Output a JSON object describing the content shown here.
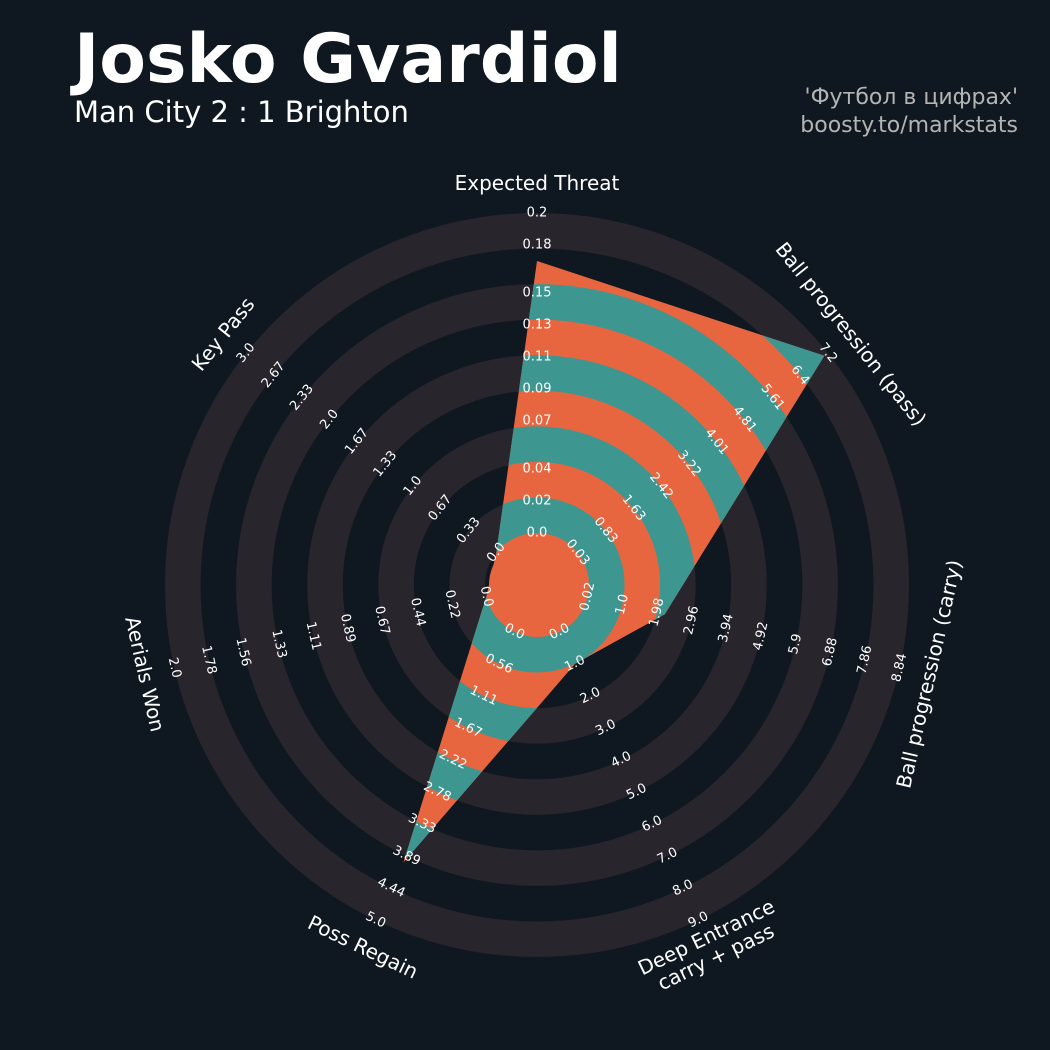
{
  "chart_data": {
    "type": "radar",
    "title": "Josko Gvardiol",
    "subtitle": "Man City 2 : 1 Brighton",
    "credits": [
      "'Футбол в цифрах'",
      "boosty.to/markstats"
    ],
    "categories": [
      "Expected Threat",
      "Ball progression (pass)",
      "Ball progression (carry)",
      "Deep Entrance\ncarry + pass",
      "Poss Regain",
      "Aerials Won",
      "Key Pass"
    ],
    "values": [
      0.17,
      7.1,
      2.2,
      1.0,
      4.0,
      0.0,
      0.0
    ],
    "colors": {
      "background": "#0f1820",
      "ring": "#28252c",
      "fill": "#e8663f",
      "fill_alt": "#3e9690"
    },
    "axes": [
      {
        "ylim": [
          0,
          0.2
        ],
        "yticks": [
          {
            "value": 0,
            "label": "0.0"
          },
          0.02,
          0.04,
          0.07,
          0.09,
          0.11,
          0.13,
          0.15,
          0.18,
          0.2
        ]
      },
      {
        "ylim": [
          0.03,
          7.2
        ],
        "yticks": [
          0.03,
          0.83,
          1.63,
          2.42,
          3.22,
          4.01,
          4.81,
          5.61,
          6.4,
          7.2
        ]
      },
      {
        "ylim": [
          0.02,
          8.84
        ],
        "yticks": [
          0.02,
          {
            "value": 1,
            "label": "1.0"
          },
          1.98,
          2.96,
          3.94,
          4.92,
          5.9,
          6.88,
          7.86,
          8.84
        ]
      },
      {
        "ylim": [
          0,
          9
        ],
        "yticks": [
          {
            "value": 0,
            "label": "0.0"
          },
          {
            "value": 1,
            "label": "1.0"
          },
          {
            "value": 2,
            "label": "2.0"
          },
          {
            "value": 3,
            "label": "3.0"
          },
          {
            "value": 4,
            "label": "4.0"
          },
          {
            "value": 5,
            "label": "5.0"
          },
          {
            "value": 6,
            "label": "6.0"
          },
          {
            "value": 7,
            "label": "7.0"
          },
          {
            "value": 8,
            "label": "8.0"
          },
          {
            "value": 9,
            "label": "9.0"
          }
        ]
      },
      {
        "ylim": [
          0,
          5
        ],
        "yticks": [
          {
            "value": 0,
            "label": "0.0"
          },
          0.56,
          1.11,
          1.67,
          2.22,
          2.78,
          3.33,
          3.89,
          4.44,
          {
            "value": 5,
            "label": "5.0"
          }
        ]
      },
      {
        "ylim": [
          0,
          2
        ],
        "yticks": [
          {
            "value": 0,
            "label": "0.0"
          },
          0.22,
          0.44,
          0.67,
          0.89,
          1.11,
          1.33,
          1.56,
          1.78,
          {
            "value": 2,
            "label": "2.0"
          }
        ]
      },
      {
        "ylim": [
          0,
          3
        ],
        "yticks": [
          {
            "value": 0,
            "label": "0.0"
          },
          0.33,
          0.67,
          {
            "value": 1,
            "label": "1.0"
          },
          1.33,
          1.67,
          {
            "value": 2,
            "label": "2.0"
          },
          2.33,
          2.67,
          {
            "value": 3,
            "label": "3.0"
          }
        ]
      }
    ]
  }
}
